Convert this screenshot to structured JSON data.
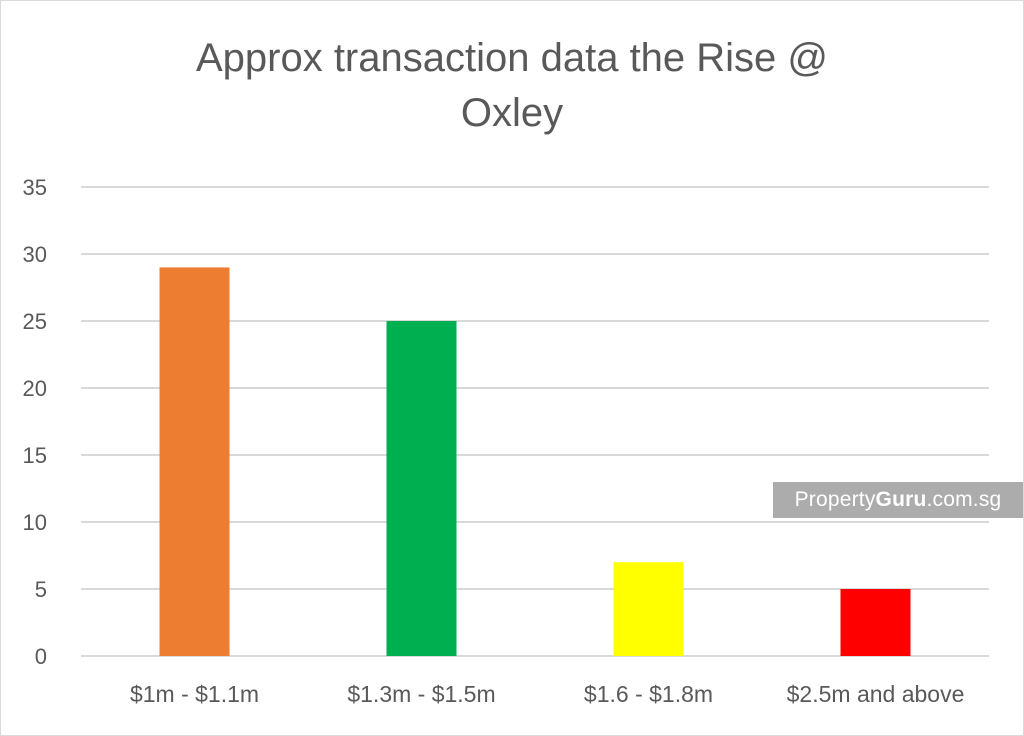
{
  "chart_data": {
    "type": "bar",
    "title_lines": [
      "Approx transaction data the Rise @",
      "Oxley"
    ],
    "categories": [
      "$1m - $1.1m",
      "$1.3m - $1.5m",
      "$1.6 - $1.8m",
      "$2.5m and above"
    ],
    "values": [
      29,
      25,
      7,
      5
    ],
    "colors": [
      "#ed7d31",
      "#00b050",
      "#ffff00",
      "#ff0000"
    ],
    "ylim": [
      0,
      35
    ],
    "yticks": [
      0,
      5,
      10,
      15,
      20,
      25,
      30,
      35
    ],
    "grid": true,
    "xlabel": "",
    "ylabel": ""
  },
  "watermark": {
    "prefix": "Property",
    "brand": "Guru",
    "suffix": ".com.sg"
  },
  "colors": {
    "text": "#595959",
    "grid": "#d9d9d9"
  }
}
